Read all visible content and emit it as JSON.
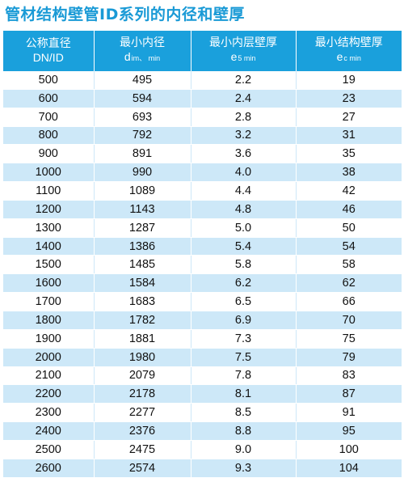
{
  "title": "管材结构壁管ID系列的内径和壁厚",
  "columns": [
    {
      "main": "公称直径",
      "sub": "DN/ID"
    },
    {
      "main": "最小内径",
      "sym": "d",
      "sub": "im、 min"
    },
    {
      "main": "最小内层壁厚",
      "sym": "e",
      "sub": "5 min"
    },
    {
      "main": "最小结构壁厚",
      "sym": "e",
      "sub": "c min"
    }
  ],
  "rows": [
    [
      "500",
      "495",
      "2.2",
      "19"
    ],
    [
      "600",
      "594",
      "2.4",
      "23"
    ],
    [
      "700",
      "693",
      "2.8",
      "27"
    ],
    [
      "800",
      "792",
      "3.2",
      "31"
    ],
    [
      "900",
      "891",
      "3.6",
      "35"
    ],
    [
      "1000",
      "990",
      "4.0",
      "38"
    ],
    [
      "1100",
      "1089",
      "4.4",
      "42"
    ],
    [
      "1200",
      "1143",
      "4.8",
      "46"
    ],
    [
      "1300",
      "1287",
      "5.0",
      "50"
    ],
    [
      "1400",
      "1386",
      "5.4",
      "54"
    ],
    [
      "1500",
      "1485",
      "5.8",
      "58"
    ],
    [
      "1600",
      "1584",
      "6.2",
      "62"
    ],
    [
      "1700",
      "1683",
      "6.5",
      "66"
    ],
    [
      "1800",
      "1782",
      "6.9",
      "70"
    ],
    [
      "1900",
      "1881",
      "7.3",
      "75"
    ],
    [
      "2000",
      "1980",
      "7.5",
      "79"
    ],
    [
      "2100",
      "2079",
      "7.8",
      "83"
    ],
    [
      "2200",
      "2178",
      "8.1",
      "87"
    ],
    [
      "2300",
      "2277",
      "8.5",
      "91"
    ],
    [
      "2400",
      "2376",
      "8.8",
      "95"
    ],
    [
      "2500",
      "2475",
      "9.0",
      "100"
    ],
    [
      "2600",
      "2574",
      "9.3",
      "104"
    ]
  ],
  "colors": {
    "title": "#1a9ad6",
    "header_bg": "#1aa0dc",
    "stripe": "#cde8f8"
  }
}
